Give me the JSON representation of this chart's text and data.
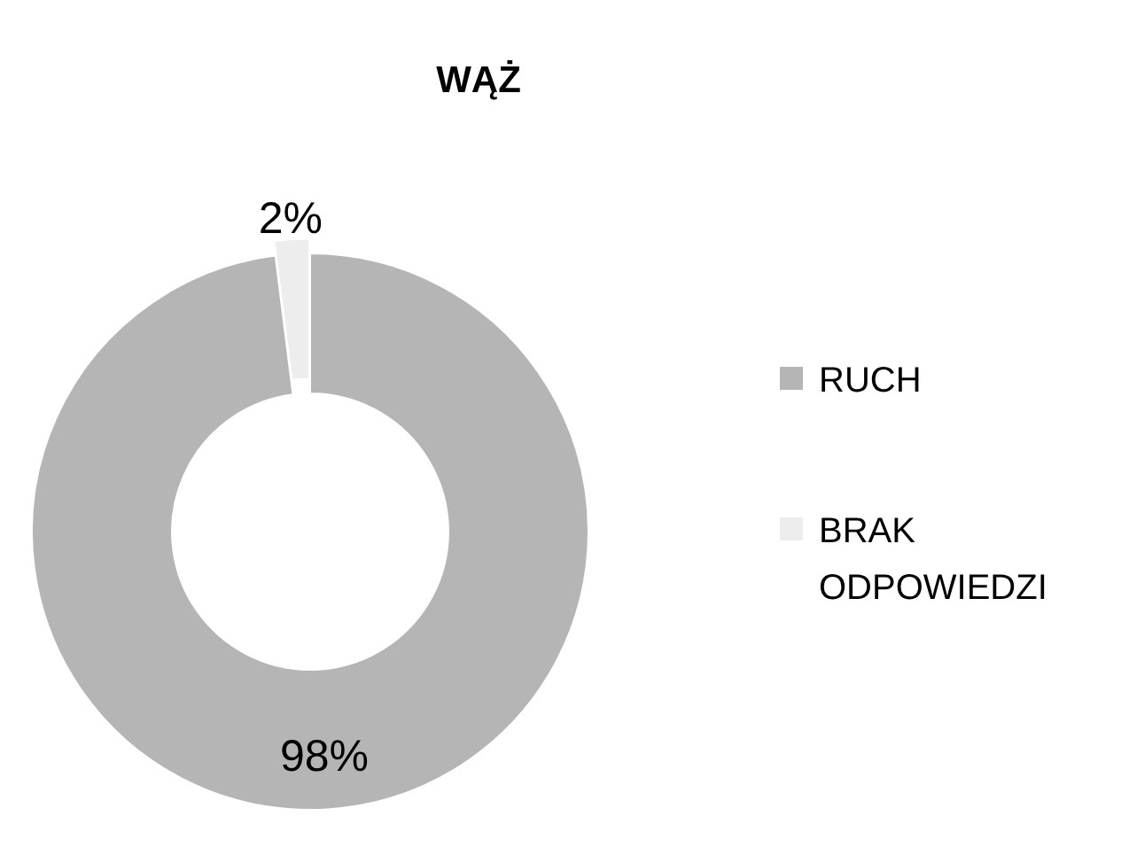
{
  "chart_data": {
    "type": "donut",
    "title": "WĄŻ",
    "categories": [
      "RUCH",
      "BRAK ODPOWIEDZI"
    ],
    "values": [
      98,
      2
    ],
    "colors": [
      "#b5b5b5",
      "#ededed"
    ],
    "value_labels": [
      "98%",
      "2%"
    ],
    "legend": "right"
  }
}
